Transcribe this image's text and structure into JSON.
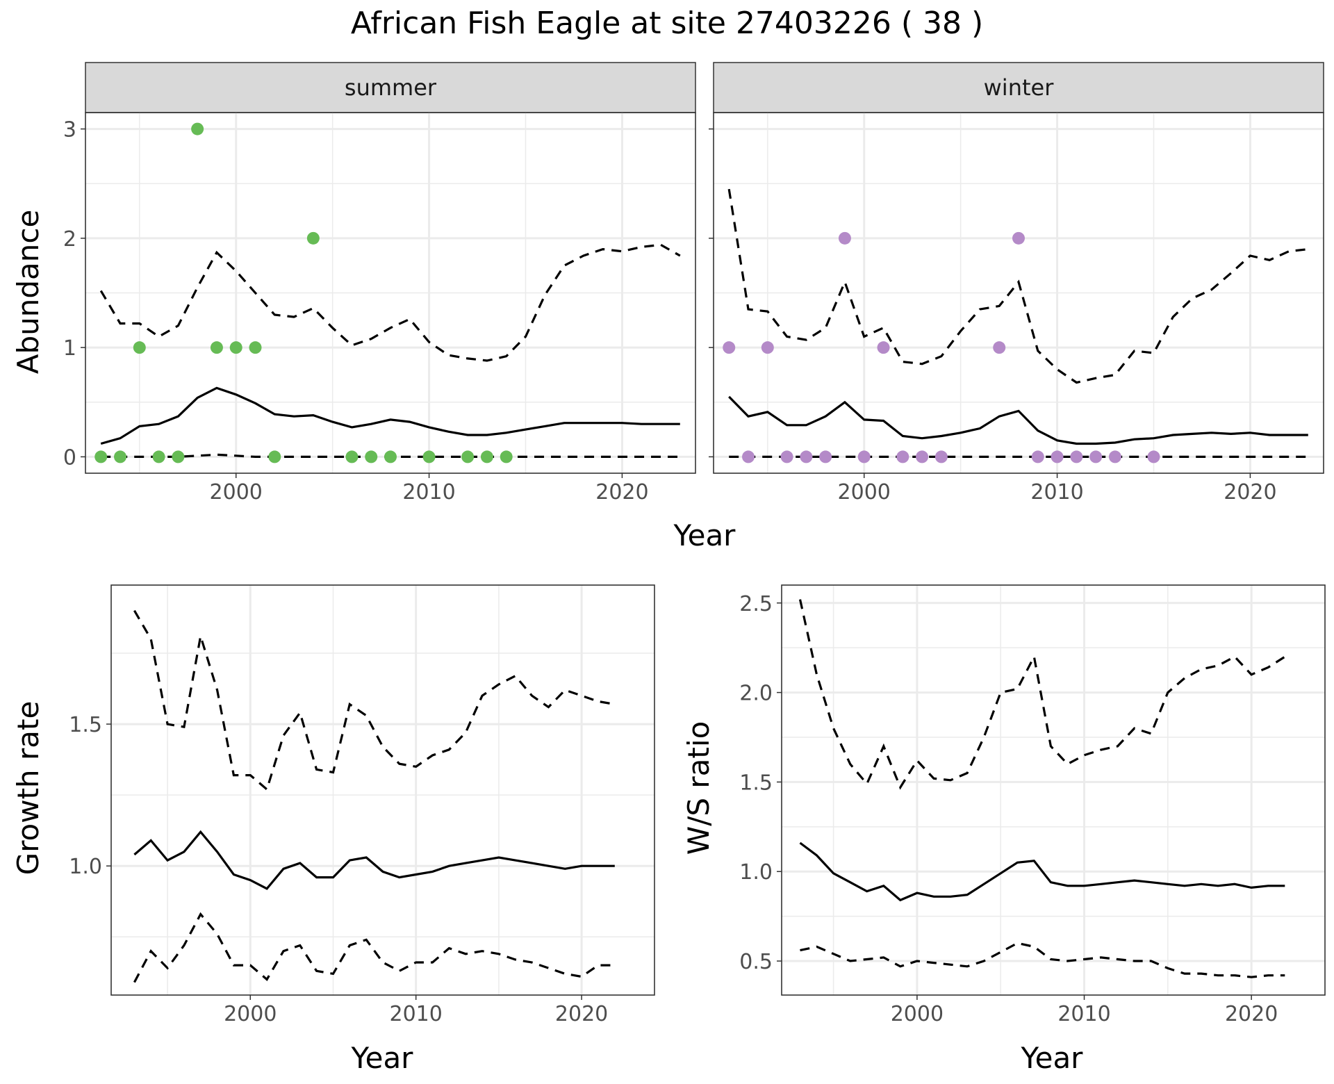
{
  "title": "African Fish Eagle at site 27403226 ( 38 )",
  "colors": {
    "summer_points": "#66bb55",
    "winter_points": "#b48ac8",
    "lines": "#000000"
  },
  "chart_data": [
    {
      "type": "scatter",
      "facet": "summer",
      "xlabel": "Year",
      "ylabel": "Abundance",
      "xlim": [
        1992.2,
        2023.8
      ],
      "ylim": [
        -0.15,
        3.15
      ],
      "xticks": [
        2000,
        2010,
        2020
      ],
      "yticks": [
        0,
        1,
        2,
        3
      ],
      "points": {
        "x": [
          1993,
          1994,
          1995,
          1996,
          1997,
          1998,
          1999,
          2000,
          2001,
          2002,
          2004,
          2006,
          2007,
          2008,
          2010,
          2012,
          2013,
          2014
        ],
        "y": [
          0,
          0,
          1,
          0,
          0,
          3,
          1,
          1,
          1,
          0,
          2,
          0,
          0,
          0,
          0,
          0,
          0,
          0
        ]
      },
      "series": [
        {
          "style": "solid",
          "x": [
            1993,
            1994,
            1995,
            1996,
            1997,
            1998,
            1999,
            2000,
            2001,
            2002,
            2003,
            2004,
            2005,
            2006,
            2007,
            2008,
            2009,
            2010,
            2011,
            2012,
            2013,
            2014,
            2015,
            2016,
            2017,
            2018,
            2019,
            2020,
            2021,
            2022,
            2023
          ],
          "y": [
            0.12,
            0.17,
            0.28,
            0.3,
            0.37,
            0.54,
            0.63,
            0.57,
            0.49,
            0.39,
            0.37,
            0.38,
            0.32,
            0.27,
            0.3,
            0.34,
            0.32,
            0.27,
            0.23,
            0.2,
            0.2,
            0.22,
            0.25,
            0.28,
            0.31,
            0.31,
            0.31,
            0.31,
            0.3,
            0.3,
            0.3
          ]
        },
        {
          "style": "dashed",
          "x": [
            1993,
            1994,
            1995,
            1996,
            1997,
            1998,
            1999,
            2000,
            2001,
            2002,
            2003,
            2004,
            2005,
            2006,
            2007,
            2008,
            2009,
            2010,
            2011,
            2012,
            2013,
            2014,
            2015,
            2016,
            2017,
            2018,
            2019,
            2020,
            2021,
            2022,
            2023
          ],
          "y": [
            1.52,
            1.22,
            1.22,
            1.1,
            1.2,
            1.55,
            1.87,
            1.7,
            1.5,
            1.3,
            1.28,
            1.36,
            1.18,
            1.02,
            1.08,
            1.18,
            1.26,
            1.05,
            0.93,
            0.9,
            0.88,
            0.92,
            1.1,
            1.48,
            1.75,
            1.84,
            1.9,
            1.88,
            1.92,
            1.94,
            1.84
          ]
        },
        {
          "style": "dashed",
          "x": [
            1993,
            1995,
            1997,
            1999,
            2001,
            2003,
            2005,
            2007,
            2009,
            2011,
            2013,
            2015,
            2017,
            2019,
            2021,
            2023
          ],
          "y": [
            0,
            0,
            0,
            0.02,
            0,
            0,
            0,
            0,
            0,
            0,
            0,
            0,
            0,
            0,
            0,
            0
          ]
        }
      ]
    },
    {
      "type": "scatter",
      "facet": "winter",
      "xlabel": "Year",
      "ylabel": "Abundance",
      "xlim": [
        1992.2,
        2023.8
      ],
      "ylim": [
        -0.15,
        3.15
      ],
      "xticks": [
        2000,
        2010,
        2020
      ],
      "yticks": [
        0,
        1,
        2,
        3
      ],
      "points": {
        "x": [
          1993,
          1994,
          1995,
          1996,
          1997,
          1998,
          1999,
          2000,
          2001,
          2002,
          2003,
          2004,
          2007,
          2008,
          2009,
          2010,
          2011,
          2012,
          2013,
          2015
        ],
        "y": [
          1,
          0,
          1,
          0,
          0,
          0,
          2,
          0,
          1,
          0,
          0,
          0,
          1,
          2,
          0,
          0,
          0,
          0,
          0,
          0
        ]
      },
      "series": [
        {
          "style": "solid",
          "x": [
            1993,
            1994,
            1995,
            1996,
            1997,
            1998,
            1999,
            2000,
            2001,
            2002,
            2003,
            2004,
            2005,
            2006,
            2007,
            2008,
            2009,
            2010,
            2011,
            2012,
            2013,
            2014,
            2015,
            2016,
            2017,
            2018,
            2019,
            2020,
            2021,
            2022,
            2023
          ],
          "y": [
            0.55,
            0.37,
            0.41,
            0.29,
            0.29,
            0.37,
            0.5,
            0.34,
            0.33,
            0.19,
            0.17,
            0.19,
            0.22,
            0.26,
            0.37,
            0.42,
            0.24,
            0.15,
            0.12,
            0.12,
            0.13,
            0.16,
            0.17,
            0.2,
            0.21,
            0.22,
            0.21,
            0.22,
            0.2,
            0.2,
            0.2
          ]
        },
        {
          "style": "dashed",
          "x": [
            1993,
            1994,
            1995,
            1996,
            1997,
            1998,
            1999,
            2000,
            2001,
            2002,
            2003,
            2004,
            2005,
            2006,
            2007,
            2008,
            2009,
            2010,
            2011,
            2012,
            2013,
            2014,
            2015,
            2016,
            2017,
            2018,
            2019,
            2020,
            2021,
            2022,
            2023
          ],
          "y": [
            2.45,
            1.35,
            1.33,
            1.1,
            1.07,
            1.18,
            1.6,
            1.1,
            1.18,
            0.87,
            0.85,
            0.92,
            1.15,
            1.35,
            1.38,
            1.6,
            0.97,
            0.8,
            0.68,
            0.72,
            0.75,
            0.97,
            0.95,
            1.28,
            1.45,
            1.53,
            1.68,
            1.84,
            1.8,
            1.88,
            1.9
          ]
        },
        {
          "style": "dashed",
          "x": [
            1993,
            1995,
            1997,
            1999,
            2001,
            2003,
            2005,
            2007,
            2009,
            2011,
            2013,
            2015,
            2017,
            2019,
            2021,
            2023
          ],
          "y": [
            0,
            0,
            0,
            0,
            0,
            0,
            0,
            0,
            0,
            0,
            0,
            0,
            0,
            0,
            0,
            0
          ]
        }
      ]
    },
    {
      "type": "line",
      "xlabel": "Year",
      "ylabel": "Growth rate",
      "xlim": [
        1991.6,
        2024.4
      ],
      "ylim": [
        0.545,
        1.99
      ],
      "xticks": [
        2000,
        2010,
        2020
      ],
      "yticks": [
        1.0,
        1.5
      ],
      "ytick_labels": [
        "1.0",
        "1.5"
      ],
      "series": [
        {
          "style": "solid",
          "x": [
            1993,
            1994,
            1995,
            1996,
            1997,
            1998,
            1999,
            2000,
            2001,
            2002,
            2003,
            2004,
            2005,
            2006,
            2007,
            2008,
            2009,
            2010,
            2011,
            2012,
            2013,
            2014,
            2015,
            2016,
            2017,
            2018,
            2019,
            2020,
            2021,
            2022
          ],
          "y": [
            1.04,
            1.09,
            1.02,
            1.05,
            1.12,
            1.05,
            0.97,
            0.95,
            0.92,
            0.99,
            1.01,
            0.96,
            0.96,
            1.02,
            1.03,
            0.98,
            0.96,
            0.97,
            0.98,
            1.0,
            1.01,
            1.02,
            1.03,
            1.02,
            1.01,
            1.0,
            0.99,
            1.0,
            1.0,
            1.0
          ]
        },
        {
          "style": "dashed",
          "x": [
            1993,
            1994,
            1995,
            1996,
            1997,
            1998,
            1999,
            2000,
            2001,
            2002,
            2003,
            2004,
            2005,
            2006,
            2007,
            2008,
            2009,
            2010,
            2011,
            2012,
            2013,
            2014,
            2015,
            2016,
            2017,
            2018,
            2019,
            2020,
            2021,
            2022
          ],
          "y": [
            1.9,
            1.8,
            1.5,
            1.49,
            1.81,
            1.62,
            1.32,
            1.32,
            1.27,
            1.46,
            1.54,
            1.34,
            1.33,
            1.57,
            1.53,
            1.42,
            1.36,
            1.35,
            1.39,
            1.41,
            1.47,
            1.6,
            1.64,
            1.67,
            1.6,
            1.56,
            1.62,
            1.6,
            1.58,
            1.57
          ]
        },
        {
          "style": "dashed",
          "x": [
            1993,
            1994,
            1995,
            1996,
            1997,
            1998,
            1999,
            2000,
            2001,
            2002,
            2003,
            2004,
            2005,
            2006,
            2007,
            2008,
            2009,
            2010,
            2011,
            2012,
            2013,
            2014,
            2015,
            2016,
            2017,
            2018,
            2019,
            2020,
            2021,
            2022
          ],
          "y": [
            0.59,
            0.7,
            0.64,
            0.72,
            0.83,
            0.76,
            0.65,
            0.65,
            0.6,
            0.7,
            0.72,
            0.63,
            0.62,
            0.72,
            0.74,
            0.66,
            0.63,
            0.66,
            0.66,
            0.71,
            0.69,
            0.7,
            0.69,
            0.67,
            0.66,
            0.64,
            0.62,
            0.61,
            0.65,
            0.65
          ]
        }
      ]
    },
    {
      "type": "line",
      "xlabel": "Year",
      "ylabel": "W/S ratio",
      "xlim": [
        1991.9,
        2024.4
      ],
      "ylim": [
        0.31,
        2.6
      ],
      "xticks": [
        2000,
        2010,
        2020
      ],
      "yticks": [
        0.5,
        1.0,
        1.5,
        2.0,
        2.5
      ],
      "ytick_labels": [
        "0.5",
        "1.0",
        "1.5",
        "2.0",
        "2.5"
      ],
      "series": [
        {
          "style": "solid",
          "x": [
            1993,
            1994,
            1995,
            1996,
            1997,
            1998,
            1999,
            2000,
            2001,
            2002,
            2003,
            2004,
            2005,
            2006,
            2007,
            2008,
            2009,
            2010,
            2011,
            2012,
            2013,
            2014,
            2015,
            2016,
            2017,
            2018,
            2019,
            2020,
            2021,
            2022
          ],
          "y": [
            1.16,
            1.09,
            0.99,
            0.94,
            0.89,
            0.92,
            0.84,
            0.88,
            0.86,
            0.86,
            0.87,
            0.93,
            0.99,
            1.05,
            1.06,
            0.94,
            0.92,
            0.92,
            0.93,
            0.94,
            0.95,
            0.94,
            0.93,
            0.92,
            0.93,
            0.92,
            0.93,
            0.91,
            0.92,
            0.92
          ]
        },
        {
          "style": "dashed",
          "x": [
            1993,
            1994,
            1995,
            1996,
            1997,
            1998,
            1999,
            2000,
            2001,
            2002,
            2003,
            2004,
            2005,
            2006,
            2007,
            2008,
            2009,
            2010,
            2011,
            2012,
            2013,
            2014,
            2015,
            2016,
            2017,
            2018,
            2019,
            2020,
            2021,
            2022
          ],
          "y": [
            2.52,
            2.1,
            1.8,
            1.6,
            1.49,
            1.7,
            1.47,
            1.62,
            1.52,
            1.51,
            1.55,
            1.75,
            2.0,
            2.02,
            2.2,
            1.7,
            1.6,
            1.65,
            1.68,
            1.7,
            1.8,
            1.77,
            2.0,
            2.08,
            2.13,
            2.15,
            2.2,
            2.1,
            2.14,
            2.2
          ]
        },
        {
          "style": "dashed",
          "x": [
            1993,
            1994,
            1995,
            1996,
            1997,
            1998,
            1999,
            2000,
            2001,
            2002,
            2003,
            2004,
            2005,
            2006,
            2007,
            2008,
            2009,
            2010,
            2011,
            2012,
            2013,
            2014,
            2015,
            2016,
            2017,
            2018,
            2019,
            2020,
            2021,
            2022
          ],
          "y": [
            0.56,
            0.58,
            0.54,
            0.5,
            0.51,
            0.52,
            0.47,
            0.5,
            0.49,
            0.48,
            0.47,
            0.5,
            0.55,
            0.6,
            0.58,
            0.51,
            0.5,
            0.51,
            0.52,
            0.51,
            0.5,
            0.5,
            0.46,
            0.43,
            0.43,
            0.42,
            0.42,
            0.41,
            0.42,
            0.42
          ]
        }
      ]
    }
  ]
}
